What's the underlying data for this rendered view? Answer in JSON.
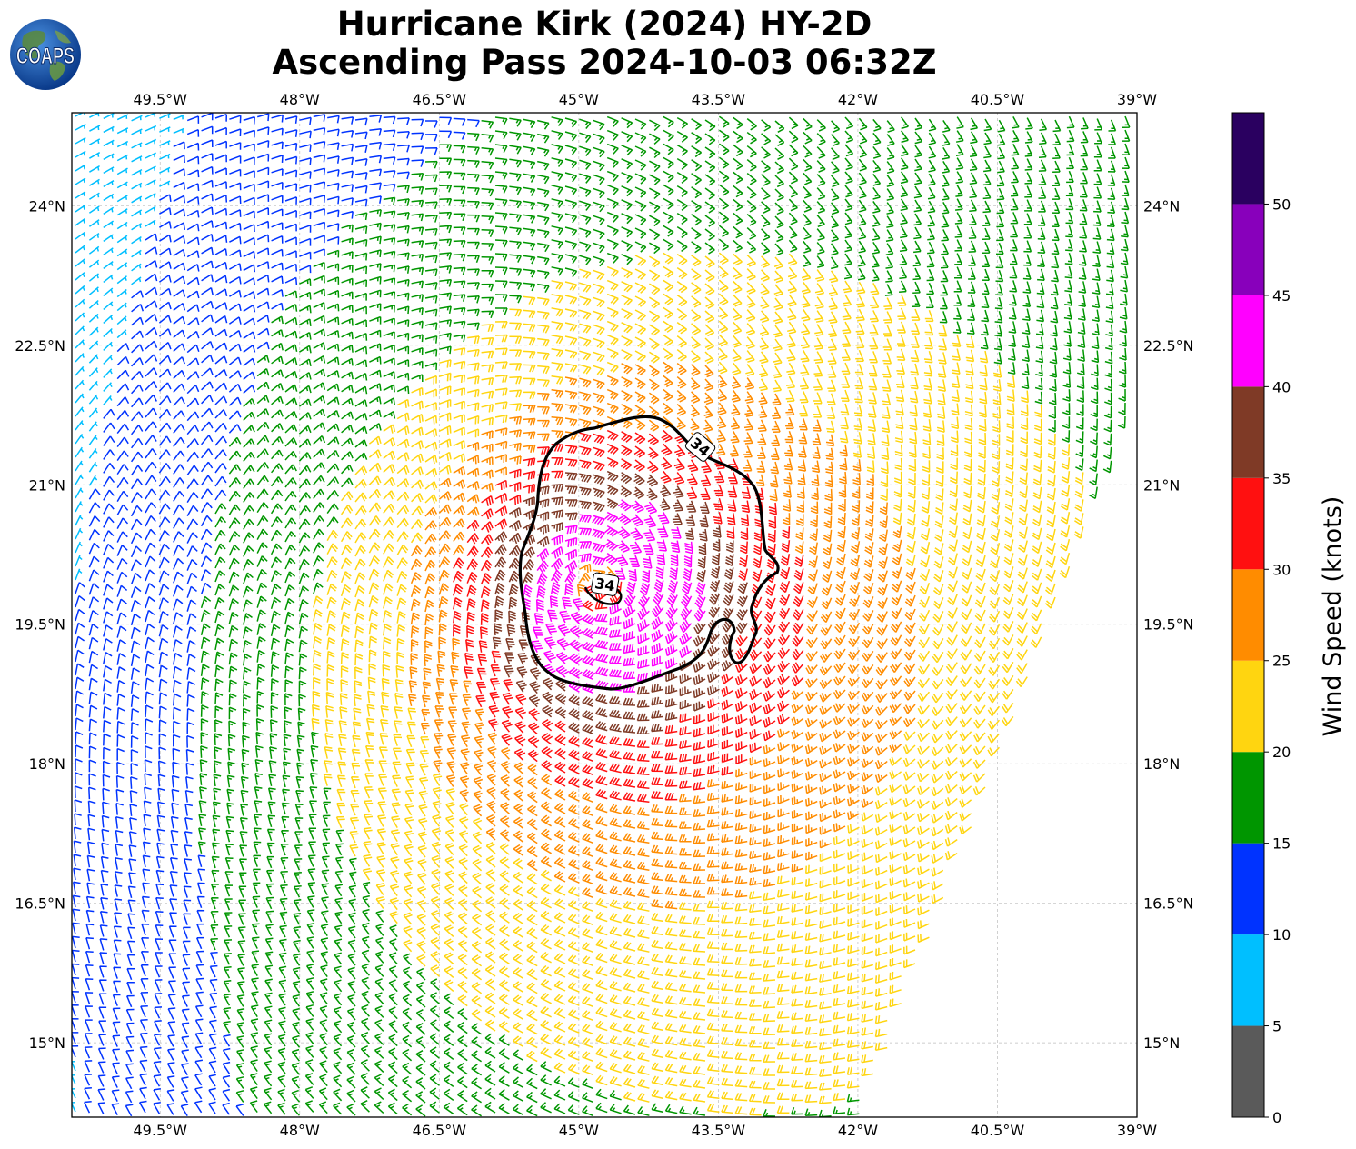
{
  "title": {
    "line1": "Hurricane Kirk (2024) HY-2D",
    "line2": "Ascending Pass 2024-10-03 06:32Z"
  },
  "logo": {
    "text": "COAPS",
    "icon": "globe-icon"
  },
  "map": {
    "lon_ticks": [
      "49.5°W",
      "48°W",
      "46.5°W",
      "45°W",
      "43.5°W",
      "42°W",
      "40.5°W",
      "39°W"
    ],
    "lon_values": [
      -49.5,
      -48,
      -46.5,
      -45,
      -43.5,
      -42,
      -40.5,
      -39
    ],
    "lat_ticks": [
      "24°N",
      "22.5°N",
      "21°N",
      "19.5°N",
      "18°N",
      "16.5°N",
      "15°N"
    ],
    "lat_values": [
      24,
      22.5,
      21,
      19.5,
      18,
      16.5,
      15
    ],
    "lon_range": [
      -50.45,
      -39.0
    ],
    "lat_range": [
      14.2,
      25.0
    ],
    "storm_center": {
      "lon": -44.8,
      "lat": 19.9
    },
    "contour_label": "34",
    "contour_labels": [
      {
        "text": "34",
        "lon": -43.7,
        "lat": 21.4,
        "angle": 40
      },
      {
        "text": "34",
        "lon": -44.72,
        "lat": 19.92,
        "angle": 10
      }
    ]
  },
  "colorbar": {
    "label": "Wind Speed (knots)",
    "ticks": [
      "0",
      "5",
      "10",
      "15",
      "20",
      "25",
      "30",
      "35",
      "40",
      "45",
      "50"
    ],
    "bins": [
      {
        "min": 0,
        "max": 5,
        "color": "#5a5a5a"
      },
      {
        "min": 5,
        "max": 10,
        "color": "#00bfff"
      },
      {
        "min": 10,
        "max": 15,
        "color": "#0033ff"
      },
      {
        "min": 15,
        "max": 20,
        "color": "#009600"
      },
      {
        "min": 20,
        "max": 25,
        "color": "#ffd510"
      },
      {
        "min": 25,
        "max": 30,
        "color": "#ff8c00"
      },
      {
        "min": 30,
        "max": 35,
        "color": "#ff1010"
      },
      {
        "min": 35,
        "max": 40,
        "color": "#7f3a26"
      },
      {
        "min": 40,
        "max": 45,
        "color": "#ff00ff"
      },
      {
        "min": 45,
        "max": 50,
        "color": "#8800bb"
      },
      {
        "min": 50,
        "max": 55,
        "color": "#2a0060"
      }
    ]
  }
}
